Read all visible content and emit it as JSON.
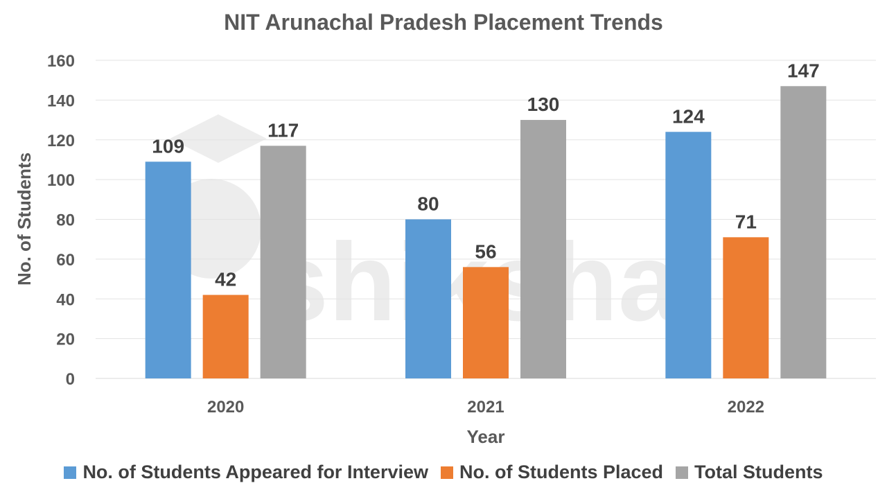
{
  "chart_data": {
    "type": "bar",
    "title": "NIT Arunachal Pradesh Placement Trends",
    "xlabel": "Year",
    "ylabel": "No. of Students",
    "categories": [
      "2020",
      "2021",
      "2022"
    ],
    "series": [
      {
        "name": "No. of Students Appeared for Interview",
        "values": [
          109,
          80,
          124
        ],
        "color": "#5b9bd5"
      },
      {
        "name": "No. of Students Placed",
        "values": [
          42,
          56,
          71
        ],
        "color": "#ed7d31"
      },
      {
        "name": "Total Students",
        "values": [
          117,
          130,
          147
        ],
        "color": "#a5a5a5"
      }
    ],
    "ylim": [
      0,
      160
    ],
    "yticks": [
      "0",
      "20",
      "40",
      "60",
      "80",
      "100",
      "120",
      "140",
      "160"
    ],
    "grid": true,
    "legend_position": "bottom",
    "data_labels": true
  },
  "watermark": {
    "text": "shiksha"
  }
}
